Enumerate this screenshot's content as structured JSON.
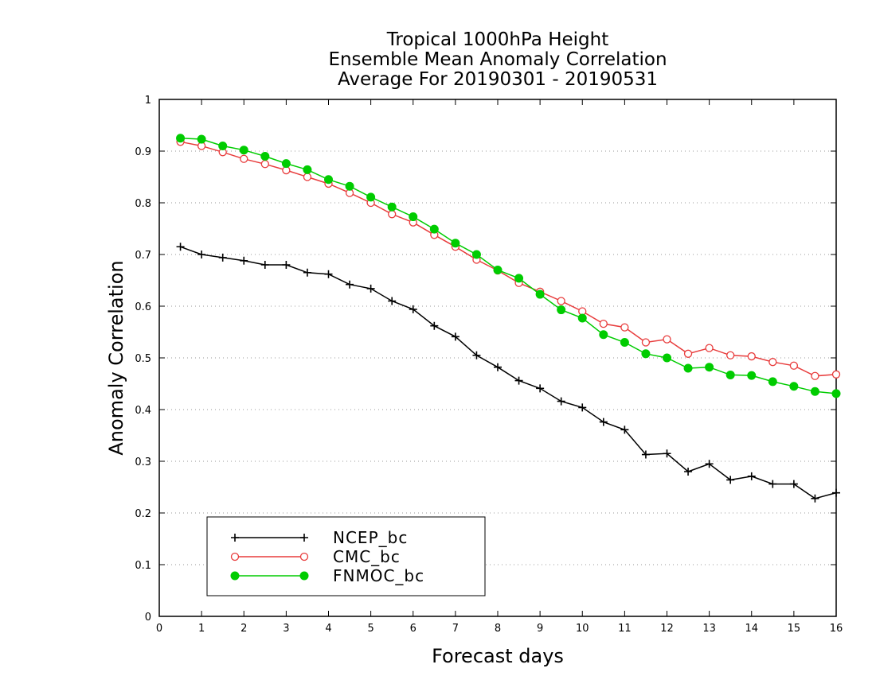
{
  "chart_data": {
    "type": "line",
    "title": [
      "Tropical 1000hPa Height",
      "Ensemble Mean Anomaly Correlation",
      "Average For 20190301 - 20190531"
    ],
    "xlabel": "Forecast days",
    "ylabel": "Anomaly Correlation",
    "xlim": [
      0,
      16
    ],
    "ylim": [
      0,
      1
    ],
    "xticks": [
      "0",
      "1",
      "2",
      "3",
      "4",
      "5",
      "6",
      "7",
      "8",
      "9",
      "10",
      "11",
      "12",
      "13",
      "14",
      "15",
      "16"
    ],
    "yticks": [
      "0",
      "0.1",
      "0.2",
      "0.3",
      "0.4",
      "0.5",
      "0.6",
      "0.7",
      "0.8",
      "0.9",
      "1"
    ],
    "grid": true,
    "legend_position": "bottom-left",
    "x": [
      0.5,
      1,
      1.5,
      2,
      2.5,
      3,
      3.5,
      4,
      4.5,
      5,
      5.5,
      6,
      6.5,
      7,
      7.5,
      8,
      8.5,
      9,
      9.5,
      10,
      10.5,
      11,
      11.5,
      12,
      12.5,
      13,
      13.5,
      14,
      14.5,
      15,
      15.5,
      16
    ],
    "series": [
      {
        "name": "NCEP_bc",
        "color": "#000000",
        "marker": "plus",
        "values": [
          0.715,
          0.7,
          0.694,
          0.688,
          0.68,
          0.68,
          0.665,
          0.662,
          0.642,
          0.634,
          0.61,
          0.594,
          0.562,
          0.541,
          0.505,
          0.482,
          0.456,
          0.441,
          0.416,
          0.404,
          0.376,
          0.361,
          0.313,
          0.315,
          0.28,
          0.295,
          0.264,
          0.271,
          0.256,
          0.256,
          0.228,
          0.239
        ]
      },
      {
        "name": "CMC_bc",
        "color": "#e83c3c",
        "marker": "open-circle",
        "values": [
          0.918,
          0.91,
          0.898,
          0.885,
          0.875,
          0.863,
          0.85,
          0.837,
          0.819,
          0.8,
          0.778,
          0.762,
          0.738,
          0.715,
          0.69,
          0.669,
          0.645,
          0.628,
          0.61,
          0.59,
          0.566,
          0.559,
          0.53,
          0.536,
          0.508,
          0.519,
          0.505,
          0.503,
          0.492,
          0.485,
          0.465,
          0.468
        ]
      },
      {
        "name": "FNMOC_bc",
        "color": "#00cc00",
        "marker": "filled-circle",
        "values": [
          0.925,
          0.923,
          0.91,
          0.902,
          0.89,
          0.876,
          0.864,
          0.845,
          0.832,
          0.811,
          0.792,
          0.773,
          0.749,
          0.722,
          0.7,
          0.67,
          0.654,
          0.623,
          0.593,
          0.577,
          0.545,
          0.53,
          0.508,
          0.5,
          0.48,
          0.482,
          0.467,
          0.466,
          0.454,
          0.445,
          0.435,
          0.431
        ]
      }
    ]
  }
}
